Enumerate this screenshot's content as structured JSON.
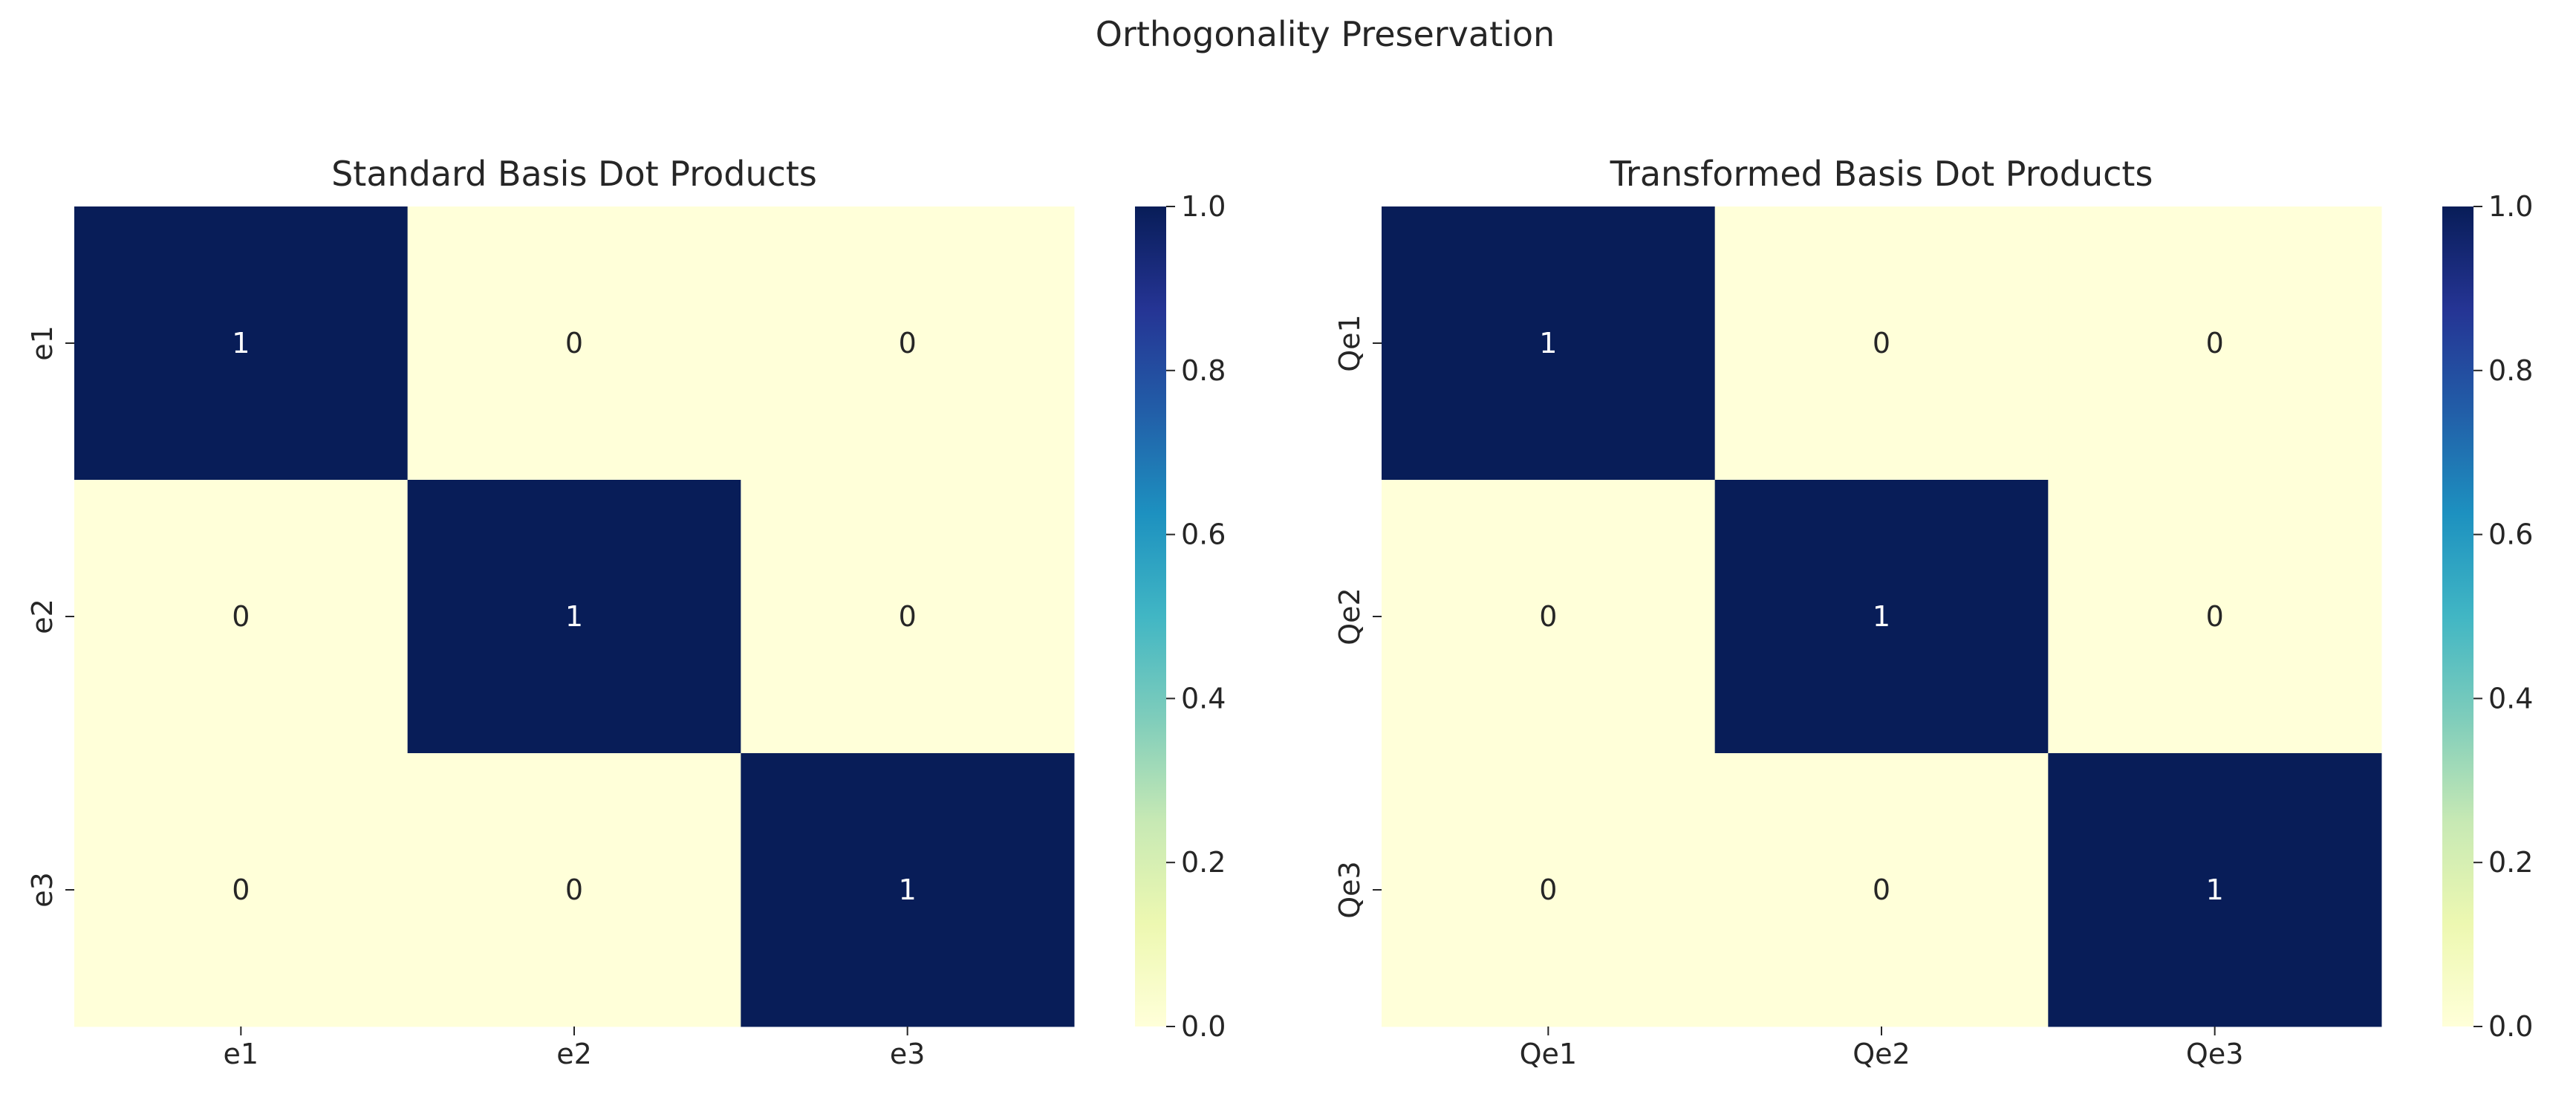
{
  "figure": {
    "suptitle": "Orthogonality Preservation"
  },
  "colormap": {
    "name": "YlGnBu",
    "stops": [
      "#ffffd9",
      "#edf8b1",
      "#c7e9b4",
      "#7fcdbb",
      "#41b6c4",
      "#1d91c0",
      "#225ea8",
      "#253494",
      "#081d58"
    ],
    "annot_text_dark": "#262626",
    "annot_text_light": "#ffffff"
  },
  "chart_data": [
    {
      "type": "heatmap",
      "title": "Standard Basis Dot Products",
      "x_categories": [
        "e1",
        "e2",
        "e3"
      ],
      "y_categories": [
        "e1",
        "e2",
        "e3"
      ],
      "values": [
        [
          1,
          0,
          0
        ],
        [
          0,
          1,
          0
        ],
        [
          0,
          0,
          1
        ]
      ],
      "annotations": true,
      "vmin": 0.0,
      "vmax": 1.0,
      "colorbar_ticks": [
        "0.0",
        "0.2",
        "0.4",
        "0.6",
        "0.8",
        "1.0"
      ]
    },
    {
      "type": "heatmap",
      "title": "Transformed Basis Dot Products",
      "x_categories": [
        "Qe1",
        "Qe2",
        "Qe3"
      ],
      "y_categories": [
        "Qe1",
        "Qe2",
        "Qe3"
      ],
      "values": [
        [
          1,
          0,
          0
        ],
        [
          0,
          1,
          0
        ],
        [
          0,
          0,
          1
        ]
      ],
      "annotations": true,
      "vmin": 0.0,
      "vmax": 1.0,
      "colorbar_ticks": [
        "0.0",
        "0.2",
        "0.4",
        "0.6",
        "0.8",
        "1.0"
      ]
    }
  ]
}
